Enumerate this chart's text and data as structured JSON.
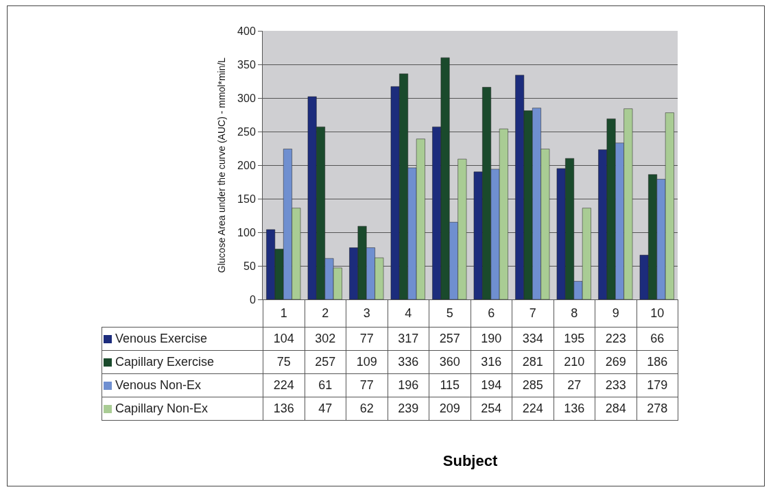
{
  "chart_data": {
    "type": "bar",
    "annotations": [
      "Subject"
    ],
    "ylabel": "Glucose Area under the curve (AUC) - mmol*min/L",
    "categories": [
      "1",
      "2",
      "3",
      "4",
      "5",
      "6",
      "7",
      "8",
      "9",
      "10"
    ],
    "series": [
      {
        "name": "Venous Exercise",
        "color": "#1c2c7c",
        "values": [
          104,
          302,
          77,
          317,
          257,
          190,
          334,
          195,
          223,
          66
        ]
      },
      {
        "name": "Capillary Exercise",
        "color": "#1a4a2c",
        "values": [
          75,
          257,
          109,
          336,
          360,
          316,
          281,
          210,
          269,
          186
        ]
      },
      {
        "name": "Venous Non-Ex",
        "color": "#6f8fd0",
        "values": [
          224,
          61,
          77,
          196,
          115,
          194,
          285,
          27,
          233,
          179
        ]
      },
      {
        "name": "Capillary Non-Ex",
        "color": "#a9cc94",
        "values": [
          136,
          47,
          62,
          239,
          209,
          254,
          224,
          136,
          284,
          278
        ]
      }
    ],
    "ylim": [
      0,
      400
    ],
    "yticks": [
      0,
      50,
      100,
      150,
      200,
      250,
      300,
      350,
      400
    ],
    "grid": "y",
    "data_labels": true,
    "legend": "bottom"
  }
}
